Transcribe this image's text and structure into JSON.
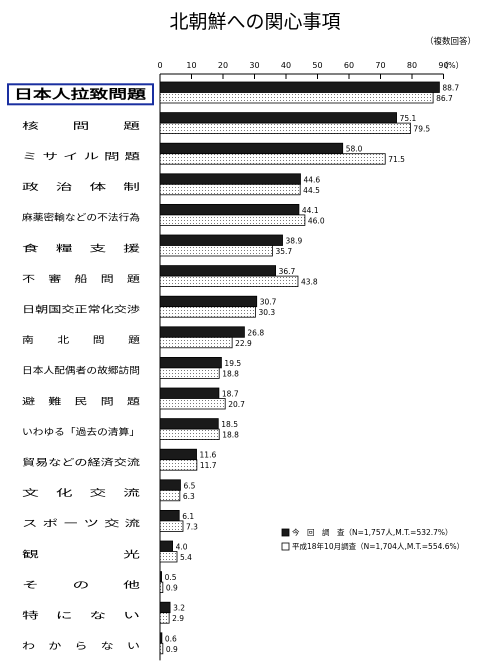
{
  "chart_data": {
    "type": "bar",
    "orientation": "horizontal",
    "title": "北朝鮮への関心事項",
    "subtitle": "（複数回答）",
    "xlabel": "（%）",
    "xlim": [
      0,
      90
    ],
    "xticks": [
      0,
      10,
      20,
      30,
      40,
      50,
      60,
      70,
      80,
      90
    ],
    "grid": false,
    "legend_position": "bottom-right",
    "highlighted_category": "日本人拉致問題",
    "categories": [
      "日本人拉致問題",
      "核　　問　　題",
      "ミ サ イ ル 問 題",
      "政　治　体　制",
      "麻薬密輸などの不法行為",
      "食　糧　支　援",
      "不　審　船　問　題",
      "日朝国交正常化交渉",
      "南　　北　　問　　題",
      "日本人配偶者の故郷訪問",
      "避　難　民　問　題",
      "いわゆる「過去の清算」",
      "貿易などの経済交流",
      "文　化　交　流",
      "ス ポ ー ツ 交 流",
      "観　　　　　光",
      "そ　　の　　他",
      "特　に　な　い",
      "わ　か　ら　な　い"
    ],
    "series": [
      {
        "name": "今　回　調　査（N=1,757人,M.T.=532.7%）",
        "color": "#1a1a1a",
        "values": [
          88.7,
          75.1,
          58.0,
          44.6,
          44.1,
          38.9,
          36.7,
          30.7,
          26.8,
          19.5,
          18.7,
          18.5,
          11.6,
          6.5,
          6.1,
          4.0,
          0.5,
          3.2,
          0.6
        ]
      },
      {
        "name": "平成18年10月調査（N=1,704人,M.T.=554.6%）",
        "color": "#ffffff",
        "values": [
          86.7,
          79.5,
          71.5,
          44.5,
          46.0,
          35.7,
          43.8,
          30.3,
          22.9,
          18.8,
          20.7,
          18.8,
          11.7,
          6.3,
          7.3,
          5.4,
          0.9,
          2.9,
          0.9
        ]
      }
    ]
  }
}
